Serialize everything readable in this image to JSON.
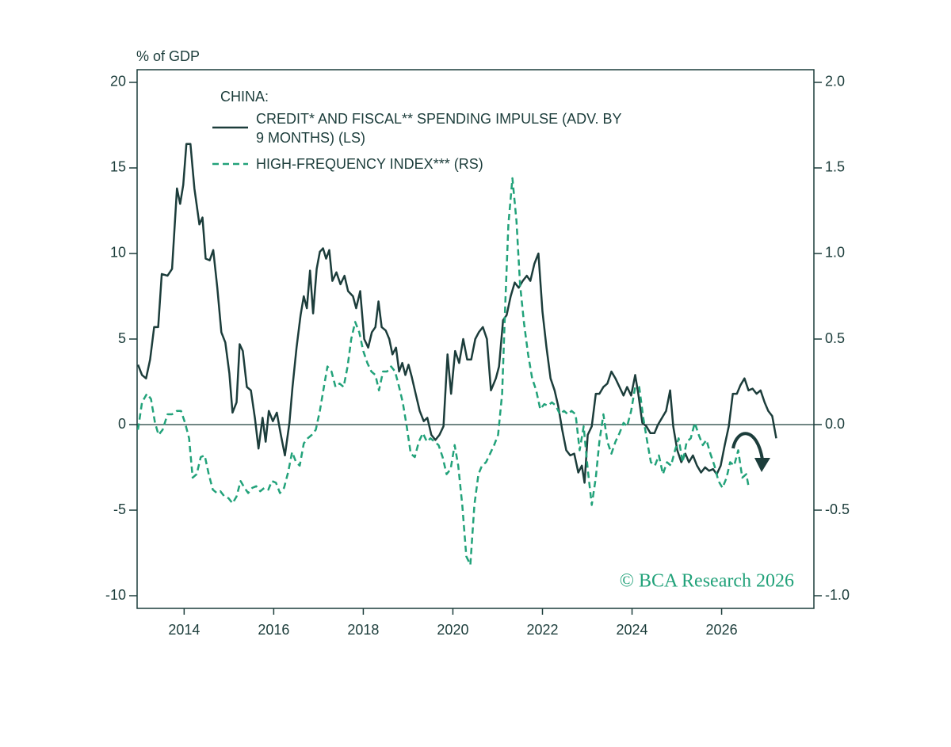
{
  "chart_data": {
    "type": "line",
    "y_label": "% of GDP",
    "legend_title": "CHINA:",
    "watermark": "© BCA Research 2026",
    "xlim": [
      2012.95,
      2028.06
    ],
    "xticks": [
      2014,
      2016,
      2018,
      2020,
      2022,
      2024,
      2026
    ],
    "ylim": [
      -10.74,
      20.74
    ],
    "yticks": [
      -10,
      -5,
      0,
      5,
      10,
      15,
      20
    ],
    "y2lim": [
      -1.074,
      2.074
    ],
    "y2ticks": [
      {
        "value": -1,
        "label": "-1.0"
      },
      -0.5,
      {
        "value": 0,
        "label": "0.0"
      },
      0.5,
      {
        "value": 1,
        "label": "1.0"
      },
      1.5,
      {
        "value": 2,
        "label": "2.0"
      }
    ],
    "series": [
      {
        "name": "CREDIT* AND FISCAL** SPENDING IMPULSE (ADV. BY 9 MONTHS) (LS)",
        "color": "#1c3d3b",
        "style": "solid",
        "x": [
          2012.97,
          2013.06,
          2013.15,
          2013.24,
          2013.33,
          2013.42,
          2013.5,
          2013.63,
          2013.73,
          2013.84,
          2013.91,
          2013.98,
          2014.05,
          2014.14,
          2014.23,
          2014.34,
          2014.41,
          2014.48,
          2014.57,
          2014.65,
          2014.74,
          2014.83,
          2014.92,
          2015.01,
          2015.08,
          2015.17,
          2015.24,
          2015.31,
          2015.4,
          2015.49,
          2015.58,
          2015.66,
          2015.75,
          2015.82,
          2015.89,
          2015.98,
          2016.07,
          2016.16,
          2016.25,
          2016.35,
          2016.42,
          2016.51,
          2016.6,
          2016.67,
          2016.74,
          2016.81,
          2016.88,
          2016.96,
          2017.03,
          2017.1,
          2017.17,
          2017.24,
          2017.31,
          2017.4,
          2017.49,
          2017.58,
          2017.66,
          2017.77,
          2017.84,
          2017.93,
          2018.02,
          2018.11,
          2018.19,
          2018.27,
          2018.34,
          2018.41,
          2018.5,
          2018.58,
          2018.65,
          2018.73,
          2018.8,
          2018.87,
          2018.94,
          2019.01,
          2019.08,
          2019.17,
          2019.26,
          2019.35,
          2019.43,
          2019.52,
          2019.61,
          2019.7,
          2019.79,
          2019.88,
          2019.96,
          2020.05,
          2020.14,
          2020.23,
          2020.32,
          2020.41,
          2020.5,
          2020.58,
          2020.67,
          2020.76,
          2020.85,
          2020.96,
          2021.03,
          2021.12,
          2021.2,
          2021.29,
          2021.38,
          2021.47,
          2021.56,
          2021.65,
          2021.73,
          2021.82,
          2021.91,
          2022.0,
          2022.09,
          2022.18,
          2022.27,
          2022.35,
          2022.44,
          2022.53,
          2022.62,
          2022.71,
          2022.8,
          2022.88,
          2022.94,
          2023.01,
          2023.1,
          2023.19,
          2023.27,
          2023.36,
          2023.45,
          2023.54,
          2023.63,
          2023.72,
          2023.81,
          2023.89,
          2023.98,
          2024.07,
          2024.14,
          2024.23,
          2024.32,
          2024.41,
          2024.5,
          2024.58,
          2024.67,
          2024.76,
          2024.85,
          2024.92,
          2025.01,
          2025.1,
          2025.19,
          2025.27,
          2025.36,
          2025.45,
          2025.54,
          2025.63,
          2025.72,
          2025.81,
          2025.89,
          2025.98,
          2026.07,
          2026.16,
          2026.25,
          2026.34,
          2026.42,
          2026.51,
          2026.6,
          2026.69,
          2026.78,
          2026.87,
          2026.96,
          2027.04,
          2027.13,
          2027.22
        ],
        "values": [
          3.5,
          2.9,
          2.7,
          3.8,
          5.7,
          5.7,
          8.8,
          8.7,
          9.1,
          13.8,
          12.9,
          14.0,
          16.4,
          16.4,
          13.8,
          11.7,
          12.1,
          9.7,
          9.6,
          10.2,
          8.0,
          5.4,
          4.8,
          3.0,
          0.7,
          1.3,
          4.7,
          4.3,
          2.2,
          2.0,
          0.4,
          -1.4,
          0.4,
          -1.0,
          0.8,
          0.2,
          0.7,
          -0.6,
          -1.8,
          0.1,
          2.2,
          4.5,
          6.4,
          7.5,
          6.8,
          9.0,
          6.5,
          9.1,
          10.1,
          10.3,
          9.7,
          10.2,
          8.4,
          8.9,
          8.2,
          8.7,
          7.8,
          7.5,
          6.8,
          7.8,
          5.0,
          4.5,
          5.4,
          5.7,
          7.2,
          5.7,
          5.5,
          5.0,
          4.1,
          4.5,
          3.1,
          3.6,
          2.9,
          3.5,
          2.8,
          1.8,
          0.8,
          0.2,
          0.4,
          -0.6,
          -0.9,
          -0.6,
          -0.1,
          4.1,
          1.8,
          4.3,
          3.6,
          5.0,
          3.8,
          3.8,
          5.0,
          5.4,
          5.7,
          5.0,
          2.0,
          2.7,
          3.4,
          6.1,
          6.4,
          7.5,
          8.3,
          8.0,
          8.4,
          8.7,
          8.4,
          9.4,
          10.0,
          6.6,
          4.5,
          2.7,
          2.0,
          1.1,
          -0.3,
          -1.5,
          -1.8,
          -1.7,
          -2.8,
          -2.4,
          -3.4,
          -0.6,
          -0.1,
          1.8,
          1.8,
          2.2,
          2.4,
          3.1,
          2.7,
          2.2,
          1.7,
          2.2,
          1.7,
          2.9,
          1.8,
          0.1,
          -0.1,
          -0.5,
          -0.5,
          0.0,
          0.4,
          0.8,
          2.0,
          -0.1,
          -1.5,
          -2.2,
          -1.7,
          -2.2,
          -1.8,
          -2.4,
          -2.8,
          -2.5,
          -2.7,
          -2.6,
          -2.9,
          -2.4,
          -1.2,
          -0.1,
          1.8,
          1.8,
          2.3,
          2.7,
          2.0,
          2.1,
          1.8,
          2.0,
          1.3,
          0.8,
          0.5,
          -0.8
        ]
      },
      {
        "name": "HIGH-FREQUENCY INDEX*** (RS)",
        "color": "#22a27a",
        "style": "dashed",
        "axis": "y2",
        "x": [
          2012.97,
          2013.06,
          2013.17,
          2013.26,
          2013.35,
          2013.43,
          2013.52,
          2013.63,
          2013.73,
          2013.84,
          2013.93,
          2014.02,
          2014.11,
          2014.19,
          2014.28,
          2014.37,
          2014.46,
          2014.55,
          2014.64,
          2014.73,
          2014.81,
          2014.9,
          2014.99,
          2015.08,
          2015.17,
          2015.26,
          2015.35,
          2015.43,
          2015.52,
          2015.61,
          2015.7,
          2015.79,
          2015.88,
          2015.96,
          2016.05,
          2016.14,
          2016.23,
          2016.32,
          2016.41,
          2016.5,
          2016.58,
          2016.67,
          2016.76,
          2016.85,
          2016.94,
          2017.03,
          2017.12,
          2017.2,
          2017.29,
          2017.38,
          2017.47,
          2017.56,
          2017.65,
          2017.73,
          2017.82,
          2017.91,
          2018.0,
          2018.09,
          2018.18,
          2018.27,
          2018.35,
          2018.44,
          2018.53,
          2018.62,
          2018.71,
          2018.8,
          2018.88,
          2018.97,
          2019.06,
          2019.15,
          2019.24,
          2019.33,
          2019.42,
          2019.5,
          2019.59,
          2019.68,
          2019.77,
          2019.86,
          2019.95,
          2020.04,
          2020.12,
          2020.21,
          2020.3,
          2020.39,
          2020.48,
          2020.57,
          2020.65,
          2020.74,
          2020.83,
          2020.92,
          2021.01,
          2021.1,
          2021.17,
          2021.24,
          2021.33,
          2021.42,
          2021.5,
          2021.59,
          2021.68,
          2021.77,
          2021.86,
          2021.95,
          2022.04,
          2022.12,
          2022.21,
          2022.3,
          2022.39,
          2022.48,
          2022.57,
          2022.65,
          2022.74,
          2022.83,
          2022.92,
          2023.01,
          2023.1,
          2023.19,
          2023.27,
          2023.36,
          2023.45,
          2023.54,
          2023.63,
          2023.72,
          2023.81,
          2023.89,
          2023.98,
          2024.07,
          2024.16,
          2024.25,
          2024.34,
          2024.42,
          2024.51,
          2024.6,
          2024.69,
          2024.78,
          2024.87,
          2024.96,
          2025.04,
          2025.13,
          2025.22,
          2025.31,
          2025.4,
          2025.49,
          2025.58,
          2025.66,
          2025.75,
          2025.84,
          2025.93,
          2026.02,
          2026.11,
          2026.19,
          2026.28,
          2026.37,
          2026.46,
          2026.55,
          2026.6
        ],
        "values": [
          -0.03,
          0.13,
          0.18,
          0.15,
          0.01,
          -0.06,
          -0.03,
          0.06,
          0.06,
          0.08,
          0.08,
          0.01,
          -0.08,
          -0.31,
          -0.29,
          -0.19,
          -0.18,
          -0.29,
          -0.38,
          -0.4,
          -0.39,
          -0.42,
          -0.43,
          -0.46,
          -0.42,
          -0.33,
          -0.37,
          -0.4,
          -0.37,
          -0.36,
          -0.39,
          -0.37,
          -0.38,
          -0.33,
          -0.34,
          -0.4,
          -0.37,
          -0.28,
          -0.16,
          -0.22,
          -0.24,
          -0.11,
          -0.08,
          -0.06,
          -0.03,
          0.08,
          0.22,
          0.34,
          0.31,
          0.22,
          0.24,
          0.22,
          0.34,
          0.5,
          0.6,
          0.54,
          0.43,
          0.36,
          0.31,
          0.29,
          0.2,
          0.31,
          0.31,
          0.34,
          0.31,
          0.22,
          0.13,
          -0.01,
          -0.17,
          -0.19,
          -0.1,
          -0.05,
          -0.1,
          -0.08,
          -0.1,
          -0.12,
          -0.19,
          -0.29,
          -0.26,
          -0.12,
          -0.24,
          -0.47,
          -0.77,
          -0.82,
          -0.47,
          -0.29,
          -0.24,
          -0.22,
          -0.17,
          -0.12,
          -0.06,
          0.18,
          0.71,
          1.17,
          1.44,
          1.19,
          0.82,
          0.59,
          0.41,
          0.27,
          0.2,
          0.09,
          0.12,
          0.11,
          0.13,
          0.11,
          0.06,
          0.08,
          0.06,
          0.08,
          0.06,
          -0.15,
          -0.01,
          -0.26,
          -0.47,
          -0.31,
          -0.1,
          0.06,
          -0.1,
          -0.17,
          -0.1,
          -0.05,
          0.01,
          -0.01,
          0.08,
          0.22,
          0.22,
          0.04,
          -0.1,
          -0.22,
          -0.24,
          -0.18,
          -0.29,
          -0.22,
          -0.24,
          -0.15,
          -0.08,
          -0.22,
          -0.1,
          -0.08,
          0.01,
          -0.06,
          -0.12,
          -0.09,
          -0.17,
          -0.24,
          -0.33,
          -0.37,
          -0.31,
          -0.22,
          -0.24,
          -0.15,
          -0.31,
          -0.29,
          -0.36
        ]
      }
    ]
  }
}
